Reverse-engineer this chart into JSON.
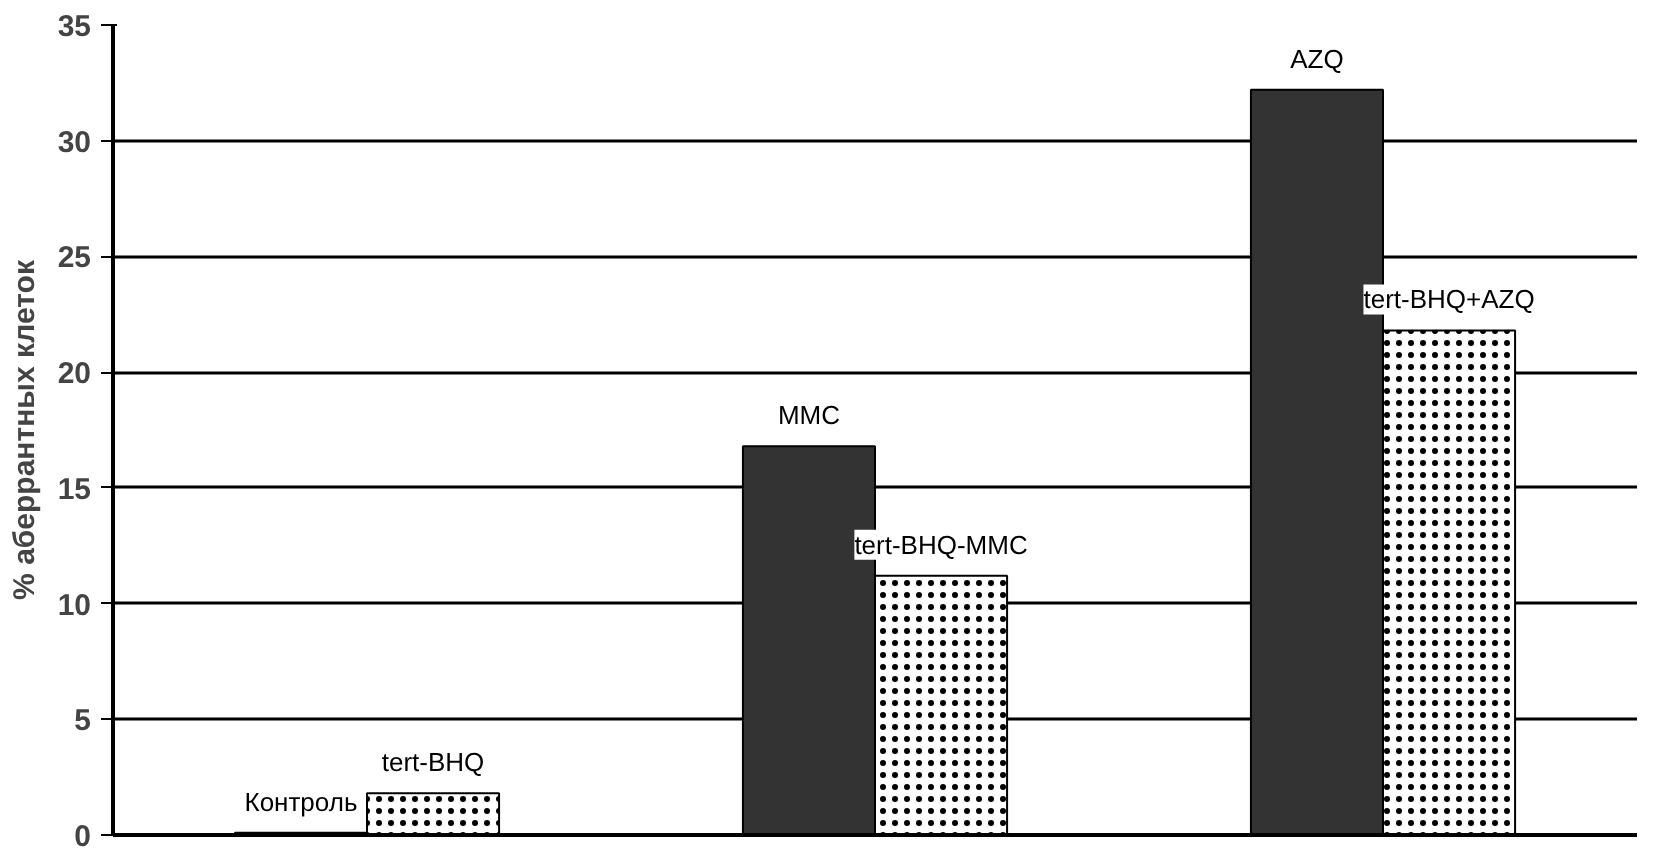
{
  "chart_data": {
    "type": "bar",
    "ylabel": "% аберрантных клеток",
    "categories": [
      null,
      null,
      null
    ],
    "series": [
      {
        "color": "#333333",
        "values": [
          0.1,
          16.8,
          32.2
        ],
        "value_labels": [
          "Контроль",
          "MMC",
          "AZQ"
        ]
      },
      {
        "color": "#ffffff",
        "values": [
          1.8,
          11.2,
          21.8
        ],
        "value_labels": [
          "tert-BHQ",
          "tert-BHQ-MMC",
          "tert-BHQ+AZQ"
        ]
      }
    ],
    "ylim": [
      0,
      35
    ],
    "yticks": [
      0,
      5,
      10,
      15,
      20,
      25,
      30,
      35
    ],
    "grid": "y"
  }
}
